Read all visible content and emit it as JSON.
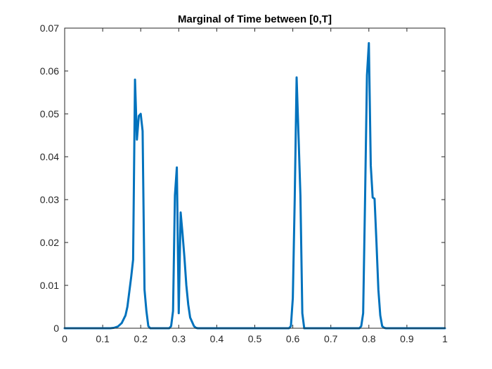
{
  "chart_data": {
    "type": "line",
    "title": "Marginal of Time between [0,T]",
    "xlabel": "",
    "ylabel": "",
    "xlim": [
      0,
      1
    ],
    "ylim": [
      0,
      0.07
    ],
    "x_ticks": [
      "0",
      "0.1",
      "0.2",
      "0.3",
      "0.4",
      "0.5",
      "0.6",
      "0.7",
      "0.8",
      "0.9",
      "1"
    ],
    "y_ticks": [
      "0",
      "0.01",
      "0.02",
      "0.03",
      "0.04",
      "0.05",
      "0.06",
      "0.07"
    ],
    "grid": false,
    "line_color": "#0072BD",
    "series": [
      {
        "x": [
          0,
          0.12,
          0.13,
          0.14,
          0.15,
          0.16,
          0.165,
          0.17,
          0.175,
          0.18,
          0.185,
          0.19,
          0.195,
          0.2,
          0.205,
          0.21,
          0.215,
          0.22,
          0.225,
          0.275,
          0.28,
          0.285,
          0.29,
          0.295,
          0.3,
          0.305,
          0.31,
          0.315,
          0.32,
          0.325,
          0.33,
          0.335,
          0.34,
          0.345,
          0.35,
          0.59,
          0.595,
          0.6,
          0.605,
          0.61,
          0.615,
          0.62,
          0.625,
          0.63,
          0.775,
          0.78,
          0.785,
          0.79,
          0.795,
          0.8,
          0.805,
          0.81,
          0.815,
          0.82,
          0.825,
          0.83,
          0.835,
          0.84,
          0.845,
          1
        ],
        "y": [
          0,
          0,
          0.0001,
          0.0004,
          0.0012,
          0.003,
          0.005,
          0.0085,
          0.012,
          0.016,
          0.058,
          0.044,
          0.0495,
          0.05,
          0.046,
          0.009,
          0.004,
          0.0005,
          0,
          0,
          0.0005,
          0.004,
          0.031,
          0.0375,
          0.0035,
          0.027,
          0.022,
          0.0165,
          0.01,
          0.0055,
          0.0025,
          0.0015,
          0.0005,
          0.0001,
          0,
          0,
          0.0005,
          0.007,
          0.03,
          0.0585,
          0.045,
          0.031,
          0.0035,
          0,
          0,
          0.0005,
          0.0035,
          0.03,
          0.059,
          0.0665,
          0.038,
          0.0305,
          0.0302,
          0.02,
          0.009,
          0.003,
          0.0005,
          0.0001,
          0,
          0
        ]
      }
    ]
  }
}
